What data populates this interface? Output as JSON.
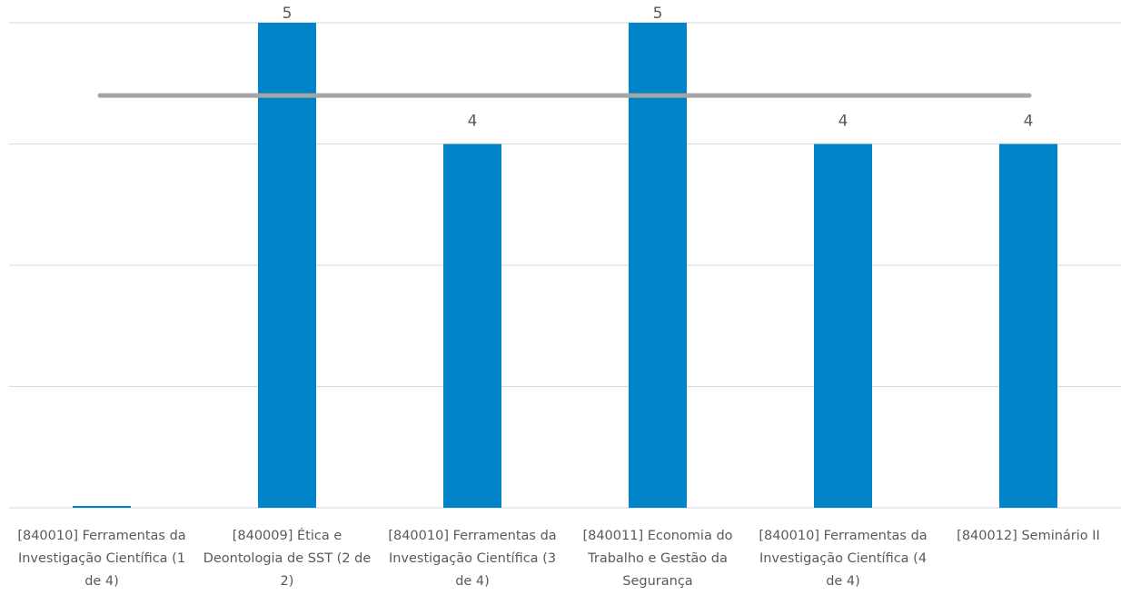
{
  "chart_data": {
    "type": "bar",
    "categories": [
      "[840010] Ferramentas da Investigação Científica (1 de 4)",
      "[840009] Ética e Deontologia de SST (2 de 2)",
      "[840010] Ferramentas da Investigação Científica (3 de 4)",
      "[840011] Economia do Trabalho e Gestão da Segurança",
      "[840010] Ferramentas da Investigação Científica (4 de 4)",
      "[840012] Seminário II"
    ],
    "values": [
      1,
      5,
      4,
      5,
      4,
      4
    ],
    "value_labels": [
      null,
      "5",
      "4",
      "5",
      "4",
      "4"
    ],
    "color": "#0084c8",
    "reference_line": {
      "value": 4.4,
      "color": "#a5a5a5"
    },
    "ylim": [
      1,
      5
    ],
    "yticks": [
      1,
      2,
      3,
      4,
      5
    ],
    "grid": true
  }
}
